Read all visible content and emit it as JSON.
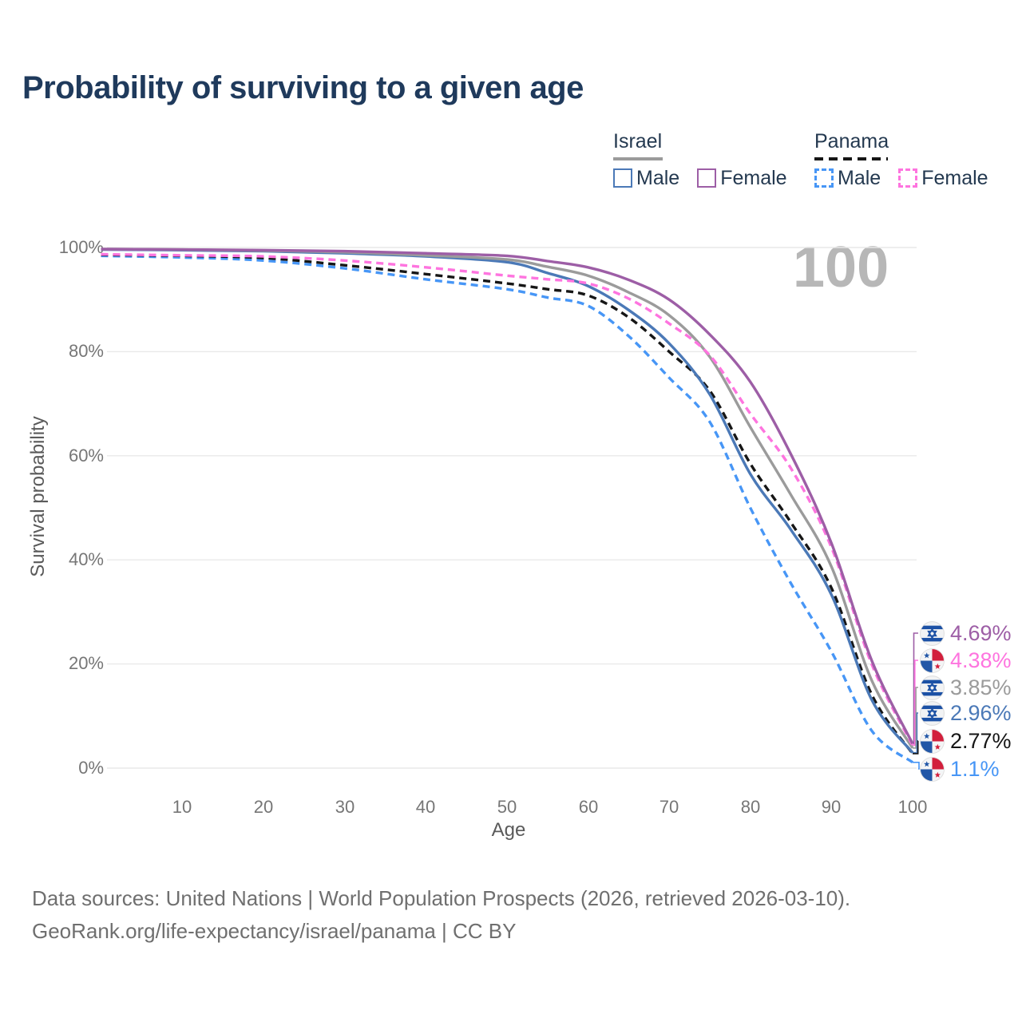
{
  "title": "Probability of surviving to a given age",
  "legend": {
    "groups": [
      {
        "label": "Israel",
        "line_style": "solid",
        "line_color": "#9b9b9b",
        "items": [
          {
            "label": "Male",
            "color": "#4b79b7"
          },
          {
            "label": "Female",
            "color": "#9d5ea6"
          }
        ]
      },
      {
        "label": "Panama",
        "line_style": "dashed",
        "line_color": "#161616",
        "items": [
          {
            "label": "Male",
            "color": "#4796f6"
          },
          {
            "label": "Female",
            "color": "#fe74df"
          }
        ]
      }
    ]
  },
  "watermark": "100",
  "axes": {
    "x": {
      "label": "Age",
      "ticks": [
        "10",
        "20",
        "30",
        "40",
        "50",
        "60",
        "70",
        "80",
        "90",
        "100"
      ]
    },
    "y": {
      "label": "Survival probability",
      "ticks": [
        "0%",
        "20%",
        "40%",
        "60%",
        "80%",
        "100%"
      ]
    }
  },
  "end_labels": [
    {
      "country": "israel",
      "series": "Israel Female",
      "value": "4.69%",
      "color": "#9d5ea6"
    },
    {
      "country": "panama",
      "series": "Panama Female",
      "value": "4.38%",
      "color": "#fe74df"
    },
    {
      "country": "israel",
      "series": "Israel Both sexes",
      "value": "3.85%",
      "color": "#9b9b9b"
    },
    {
      "country": "israel",
      "series": "Israel Male",
      "value": "2.96%",
      "color": "#4b79b7"
    },
    {
      "country": "panama",
      "series": "Panama Both sexes",
      "value": "2.77%",
      "color": "#161616"
    },
    {
      "country": "panama",
      "series": "Panama Male",
      "value": "1.1%",
      "color": "#4796f6"
    }
  ],
  "footer": {
    "line1": "Data sources: United Nations | World Population Prospects (2026, retrieved 2026-03-10).",
    "line2": "GeoRank.org/life-expectancy/israel/panama | CC BY"
  },
  "chart_data": {
    "type": "line",
    "title": "Probability of surviving to a given age",
    "xlabel": "Age",
    "ylabel": "Survival probability",
    "xlim": [
      0,
      100
    ],
    "ylim": [
      0,
      100
    ],
    "grid": "horizontal",
    "legend_position": "top-right",
    "annotation": "100",
    "x": [
      0,
      10,
      20,
      30,
      40,
      50,
      55,
      60,
      65,
      70,
      75,
      80,
      85,
      90,
      95,
      100
    ],
    "series": [
      {
        "name": "Israel Female",
        "country": "Israel",
        "sex": "Female",
        "style": "solid",
        "color": "#9d5ea6",
        "values": [
          99.7,
          99.6,
          99.5,
          99.3,
          98.9,
          98.4,
          97.4,
          96.2,
          93.8,
          90.0,
          83.3,
          74.2,
          60.3,
          43.2,
          20.5,
          4.69
        ]
      },
      {
        "name": "Panama Female",
        "country": "Panama",
        "sex": "Female",
        "style": "dashed",
        "color": "#fe74df",
        "values": [
          98.7,
          98.5,
          98.3,
          97.5,
          96.2,
          94.6,
          93.9,
          93.1,
          90.2,
          85.4,
          79.3,
          68.1,
          57.6,
          42.4,
          19.8,
          4.38
        ]
      },
      {
        "name": "Israel Both sexes",
        "country": "Israel",
        "sex": "Both sexes",
        "style": "solid",
        "color": "#9b9b9b",
        "values": [
          99.7,
          99.6,
          99.4,
          99.1,
          98.5,
          97.7,
          96.3,
          94.6,
          91.4,
          87.0,
          79.0,
          65.5,
          52.5,
          38.7,
          16.7,
          3.85
        ]
      },
      {
        "name": "Israel Male",
        "country": "Israel",
        "sex": "Male",
        "style": "solid",
        "color": "#4b79b7",
        "values": [
          99.6,
          99.5,
          99.3,
          98.9,
          98.3,
          97.2,
          95.1,
          92.6,
          88.0,
          81.6,
          71.8,
          56.5,
          45.8,
          33.3,
          13.0,
          2.96
        ]
      },
      {
        "name": "Panama Both sexes",
        "country": "Panama",
        "sex": "Both sexes",
        "style": "dashed",
        "color": "#161616",
        "values": [
          98.6,
          98.4,
          98.0,
          96.6,
          94.9,
          93.1,
          92.0,
          90.8,
          86.6,
          80.0,
          72.5,
          58.5,
          47.2,
          34.6,
          14.0,
          2.77
        ]
      },
      {
        "name": "Panama Male",
        "country": "Panama",
        "sex": "Male",
        "style": "dashed",
        "color": "#4796f6",
        "values": [
          98.4,
          98.1,
          97.5,
          96.0,
          93.9,
          92.0,
          90.4,
          88.8,
          83.0,
          75.0,
          66.5,
          50.0,
          35.5,
          22.4,
          7.1,
          1.1
        ]
      }
    ]
  }
}
